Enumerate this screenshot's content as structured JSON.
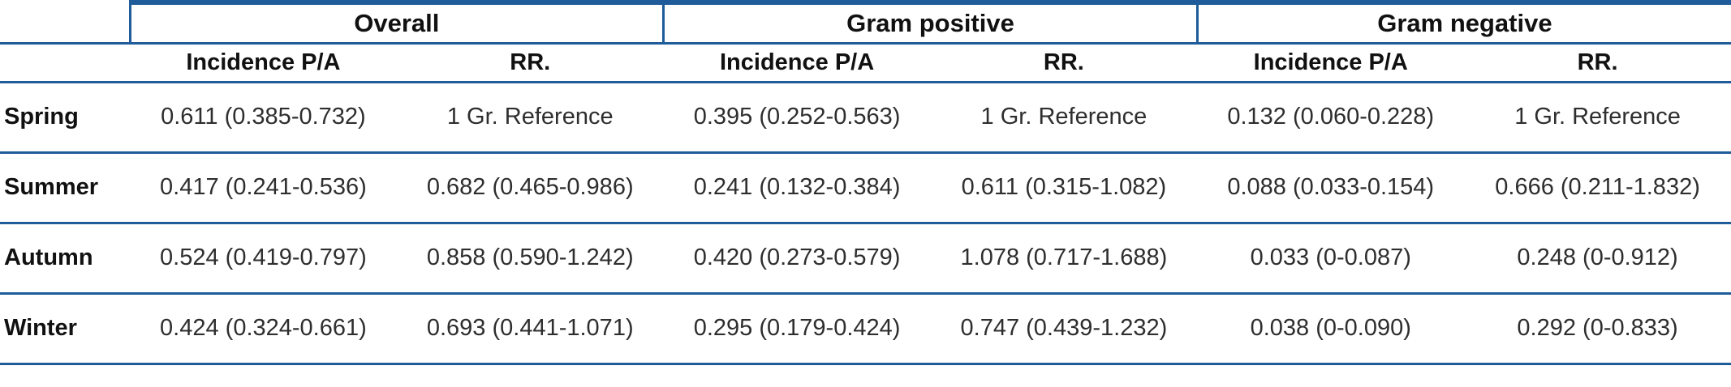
{
  "colors": {
    "rule": "#1f5c99",
    "header_text": "#111111",
    "body_text": "#2e2e2e"
  },
  "table": {
    "corner_label": "",
    "groups": [
      {
        "label": "Overall"
      },
      {
        "label": "Gram positive"
      },
      {
        "label": "Gram negative"
      }
    ],
    "subheaders": [
      "Incidence P/A",
      "RR.",
      "Incidence P/A",
      "RR.",
      "Incidence P/A",
      "RR."
    ],
    "rows": [
      {
        "label": "Spring",
        "cells": [
          "0.611 (0.385-0.732)",
          "1 Gr. Reference",
          "0.395 (0.252-0.563)",
          "1 Gr. Reference",
          "0.132 (0.060-0.228)",
          "1 Gr. Reference"
        ]
      },
      {
        "label": "Summer",
        "cells": [
          "0.417 (0.241-0.536)",
          "0.682 (0.465-0.986)",
          "0.241 (0.132-0.384)",
          "0.611 (0.315-1.082)",
          "0.088 (0.033-0.154)",
          "0.666 (0.211-1.832)"
        ]
      },
      {
        "label": "Autumn",
        "cells": [
          "0.524 (0.419-0.797)",
          "0.858 (0.590-1.242)",
          "0.420 (0.273-0.579)",
          "1.078 (0.717-1.688)",
          "0.033 (0-0.087)",
          "0.248 (0-0.912)"
        ]
      },
      {
        "label": "Winter",
        "cells": [
          "0.424 (0.324-0.661)",
          "0.693 (0.441-1.071)",
          "0.295 (0.179-0.424)",
          "0.747 (0.439-1.232)",
          "0.038 (0-0.090)",
          "0.292 (0-0.833)"
        ]
      }
    ]
  }
}
